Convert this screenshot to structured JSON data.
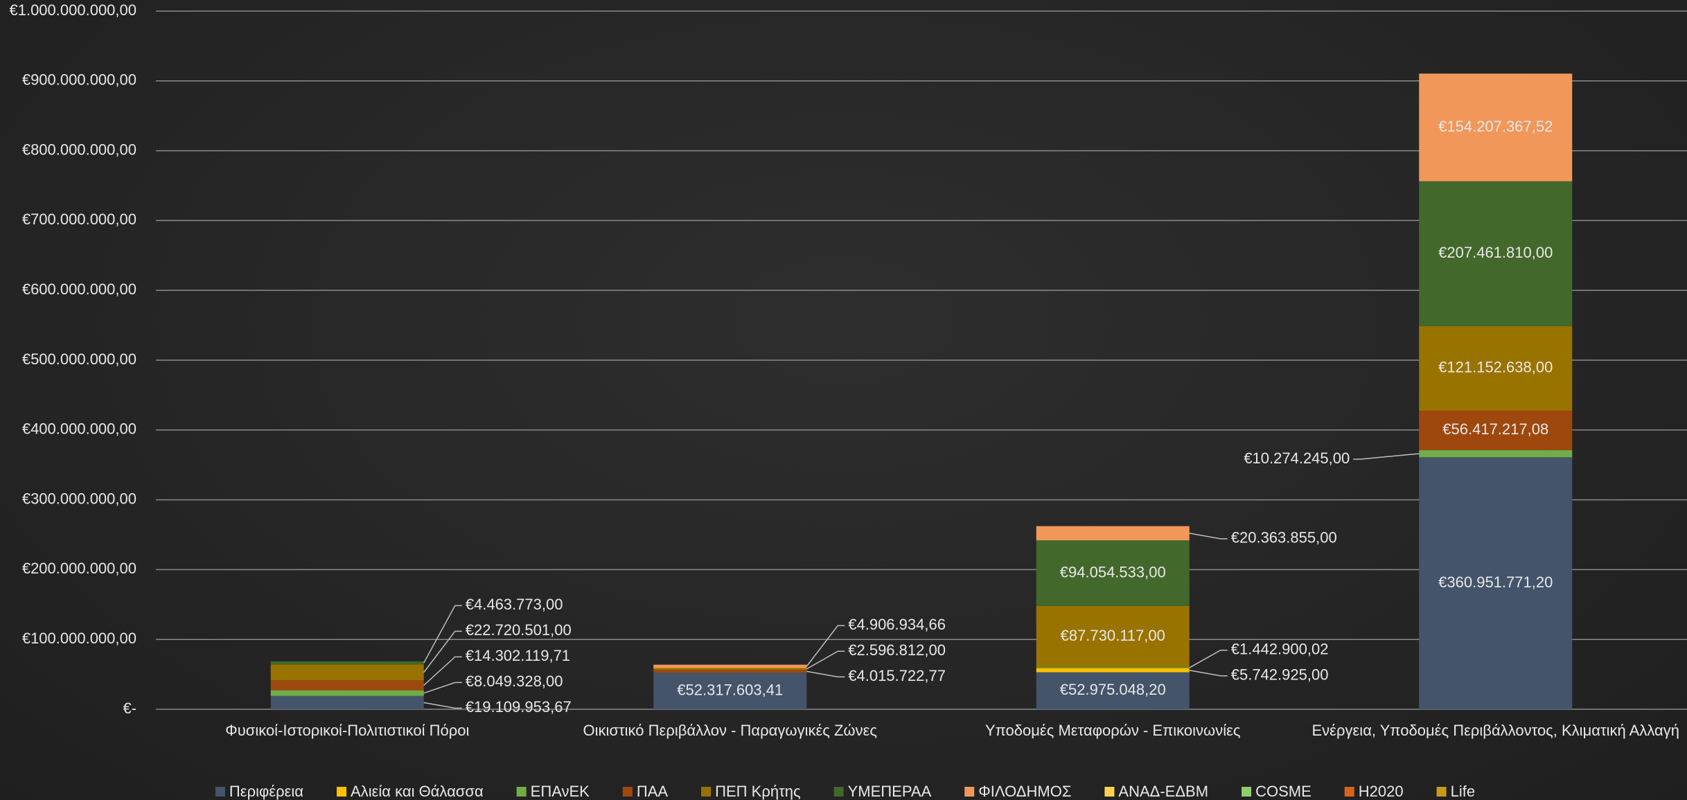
{
  "chart_data": {
    "type": "stacked_bar",
    "categories": [
      "Φυσικοί-Ιστορικοί-Πολιτιστικοί Πόροι",
      "Οικιστικό Περιβάλλον - Παραγωγικές Ζώνες",
      "Υποδομές Μεταφορών - Επικοινωνίες",
      "Ενέργεια, Υποδομές Περιβάλλοντος, Κλιματική Αλλαγή"
    ],
    "series": [
      {
        "name": "Περιφέρεια",
        "color": "#44546a",
        "values": [
          19109953.67,
          52317603.41,
          52975048.2,
          360951771.2
        ],
        "value_labels": [
          "€19.109.953,67",
          "€52.317.603,41",
          "€52.975.048,20",
          "€360.951.771,20"
        ]
      },
      {
        "name": "Αλιεία και Θάλασσα",
        "color": "#ffc000",
        "values": [
          null,
          null,
          5742925.0,
          null
        ],
        "value_labels": [
          null,
          null,
          "€5.742.925,00",
          null
        ]
      },
      {
        "name": "ΕΠΑνΕΚ",
        "color": "#70ad47",
        "values": [
          8049328.0,
          null,
          1442900.02,
          10274245.0
        ],
        "value_labels": [
          "€8.049.328,00",
          null,
          "€1.442.900,02",
          "€10.274.245,00"
        ]
      },
      {
        "name": "ΠΑΑ",
        "color": "#9e480e",
        "values": [
          14302119.71,
          4015722.77,
          null,
          56417217.08
        ],
        "value_labels": [
          "€14.302.119,71",
          "€4.015.722,77",
          null,
          "€56.417.217,08"
        ]
      },
      {
        "name": "ΠΕΠ Κρήτης",
        "color": "#997300",
        "values": [
          22720501.0,
          2596812.0,
          87730117.0,
          121152638.0
        ],
        "value_labels": [
          "€22.720.501,00",
          "€2.596.812,00",
          "€87.730.117,00",
          "€121.152.638,00"
        ]
      },
      {
        "name": "ΥΜΕΠΕΡΑΑ",
        "color": "#43682b",
        "values": [
          4463773.0,
          null,
          94054533.0,
          207461810.0
        ],
        "value_labels": [
          "€4.463.773,00",
          null,
          "€94.054.533,00",
          "€207.461.810,00"
        ]
      },
      {
        "name": "ΦΙΛΟΔΗΜΟΣ",
        "color": "#f1975a",
        "values": [
          null,
          4906934.66,
          20363855.0,
          154207367.52
        ],
        "value_labels": [
          null,
          "€4.906.934,66",
          "€20.363.855,00",
          "€154.207.367,52"
        ]
      },
      {
        "name": "ΑΝΑΔ-ΕΔΒΜ",
        "color": "#ffd34f",
        "values": [
          null,
          null,
          null,
          null
        ]
      },
      {
        "name": "COSME",
        "color": "#8fce6a",
        "values": [
          null,
          null,
          null,
          null
        ]
      },
      {
        "name": "H2020",
        "color": "#d9621c",
        "values": [
          null,
          null,
          null,
          null
        ]
      },
      {
        "name": "Life",
        "color": "#c99a1a",
        "values": [
          null,
          null,
          null,
          null
        ]
      }
    ],
    "ylim": [
      0,
      1000000000
    ],
    "yticks": [
      {
        "value": 0,
        "label": "€-"
      },
      {
        "value": 100000000,
        "label": "€100.000.000,00"
      },
      {
        "value": 200000000,
        "label": "€200.000.000,00"
      },
      {
        "value": 300000000,
        "label": "€300.000.000,00"
      },
      {
        "value": 400000000,
        "label": "€400.000.000,00"
      },
      {
        "value": 500000000,
        "label": "€500.000.000,00"
      },
      {
        "value": 600000000,
        "label": "€600.000.000,00"
      },
      {
        "value": 700000000,
        "label": "€700.000.000,00"
      },
      {
        "value": 800000000,
        "label": "€800.000.000,00"
      },
      {
        "value": 900000000,
        "label": "€900.000.000,00"
      },
      {
        "value": 1000000000,
        "label": "€1.000.000.000,00"
      }
    ],
    "grid": true,
    "legend": "bottom"
  }
}
